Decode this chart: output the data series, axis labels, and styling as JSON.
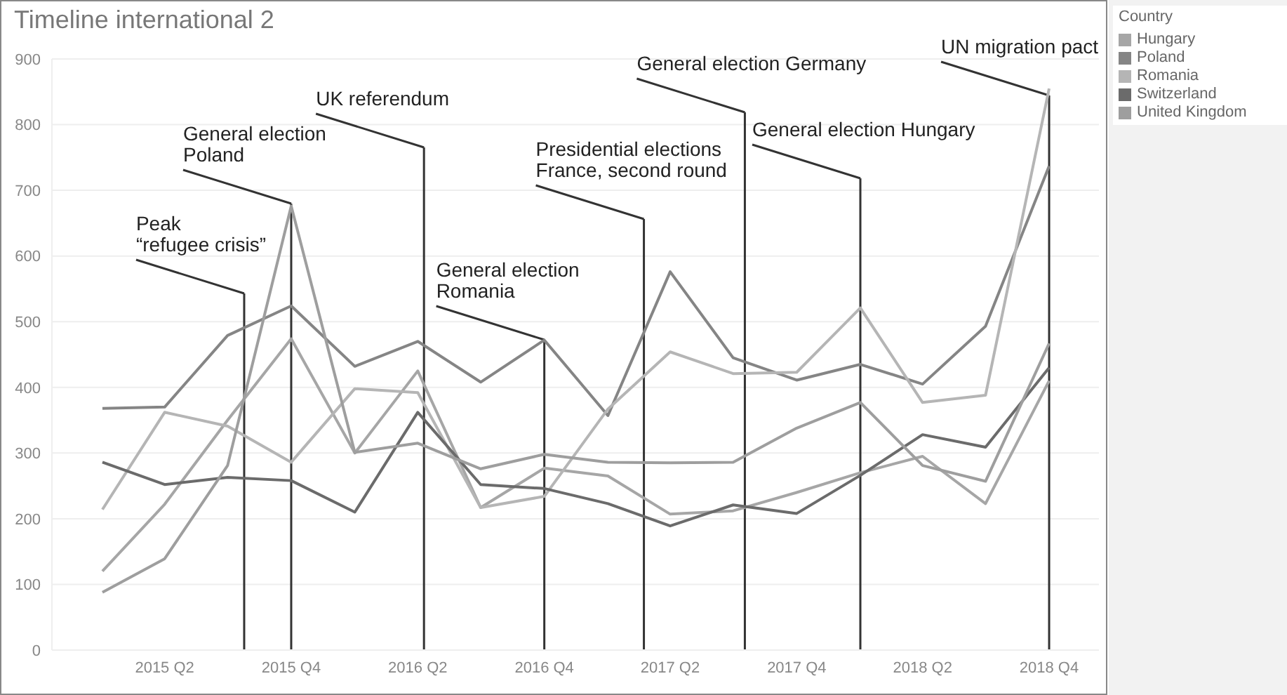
{
  "chart_data": {
    "type": "line",
    "title": "Timeline international 2",
    "legend_title": "Country",
    "x": [
      "2015-01",
      "2015-04",
      "2015-07",
      "2015-10",
      "2016-01",
      "2016-04",
      "2016-07",
      "2016-10",
      "2017-01",
      "2017-04",
      "2017-07",
      "2017-10",
      "2018-01",
      "2018-04",
      "2018-07",
      "2018-10"
    ],
    "series": [
      {
        "name": "Hungary",
        "color": "#a6a6a6",
        "values": [
          120,
          222,
          350,
          474,
          300,
          425,
          217,
          277,
          265,
          207,
          212,
          240,
          270,
          295,
          223,
          410
        ]
      },
      {
        "name": "Poland",
        "color": "#858585",
        "values": [
          368,
          370,
          479,
          524,
          432,
          470,
          408,
          472,
          357,
          576,
          445,
          411,
          435,
          405,
          493,
          737
        ]
      },
      {
        "name": "Romania",
        "color": "#b5b5b5",
        "values": [
          214,
          362,
          341,
          286,
          398,
          392,
          217,
          234,
          367,
          454,
          421,
          423,
          521,
          377,
          388,
          855
        ]
      },
      {
        "name": "Switzerland",
        "color": "#6b6b6b",
        "values": [
          286,
          252,
          263,
          258,
          210,
          362,
          252,
          246,
          223,
          189,
          221,
          208,
          266,
          328,
          309,
          430
        ]
      },
      {
        "name": "United Kingdom",
        "color": "#9e9e9e",
        "values": [
          88,
          139,
          281,
          676,
          301,
          315,
          276,
          298,
          286,
          285,
          286,
          338,
          377,
          281,
          257,
          467
        ]
      }
    ],
    "xlim": [
      "2014-10-20",
      "2018-12-12"
    ],
    "xticks": [
      {
        "value": "2015-04",
        "label": "2015 Q2"
      },
      {
        "value": "2015-10",
        "label": "2015 Q4"
      },
      {
        "value": "2016-04",
        "label": "2016 Q2"
      },
      {
        "value": "2016-10",
        "label": "2016 Q4"
      },
      {
        "value": "2017-04",
        "label": "2017 Q2"
      },
      {
        "value": "2017-10",
        "label": "2017 Q4"
      },
      {
        "value": "2018-04",
        "label": "2018 Q2"
      },
      {
        "value": "2018-10",
        "label": "2018 Q4"
      }
    ],
    "ylim": [
      0,
      900
    ],
    "yticks": [
      0,
      100,
      200,
      300,
      400,
      500,
      600,
      700,
      800,
      900
    ],
    "grid": "y",
    "legend": "top right",
    "marker": "none",
    "line_style": "solid",
    "ref_lines": [
      {
        "axis": "x",
        "value": "2015-07-25",
        "label": "Peak\n“refugee crisis”",
        "color": "#333333"
      },
      {
        "axis": "x",
        "value": "2015-10",
        "label": "General election\nPoland",
        "color": "#333333"
      },
      {
        "axis": "x",
        "value": "2016-04-10",
        "label": "UK referendum",
        "color": "#333333"
      },
      {
        "axis": "x",
        "value": "2016-10",
        "label": "General election\nRomania",
        "color": "#333333"
      },
      {
        "axis": "x",
        "value": "2017-02-22",
        "label": "Presidential elections\nFrance, second round",
        "color": "#333333"
      },
      {
        "axis": "x",
        "value": "2017-07-18",
        "label": "General election Germany",
        "color": "#333333"
      },
      {
        "axis": "x",
        "value": "2018-01",
        "label": "General election Hungary",
        "color": "#333333"
      },
      {
        "axis": "x",
        "value": "2018-10",
        "label": "UN migration pact",
        "color": "#333333"
      }
    ]
  }
}
